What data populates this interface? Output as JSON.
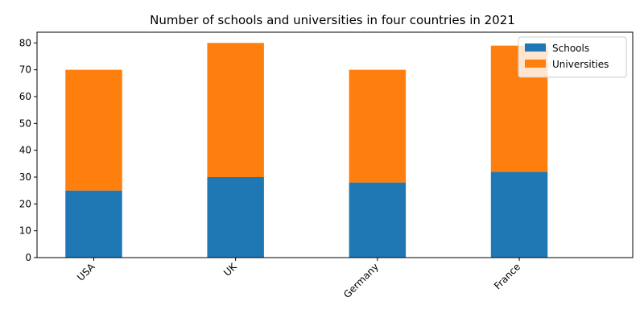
{
  "chart_data": {
    "type": "bar",
    "stacked": true,
    "title": "Number of schools and universities in four countries in 2021",
    "xlabel": "",
    "ylabel": "",
    "categories": [
      "USA",
      "UK",
      "Germany",
      "France"
    ],
    "series": [
      {
        "name": "Schools",
        "values": [
          25,
          30,
          28,
          32
        ],
        "color": "#1f77b4"
      },
      {
        "name": "Universities",
        "values": [
          45,
          50,
          42,
          47
        ],
        "color": "#ff7f0e"
      }
    ],
    "ylim": [
      0,
      84
    ],
    "yticks": [
      0,
      10,
      20,
      30,
      40,
      50,
      60,
      70,
      80
    ],
    "legend_position": "top-right",
    "grid": false
  }
}
